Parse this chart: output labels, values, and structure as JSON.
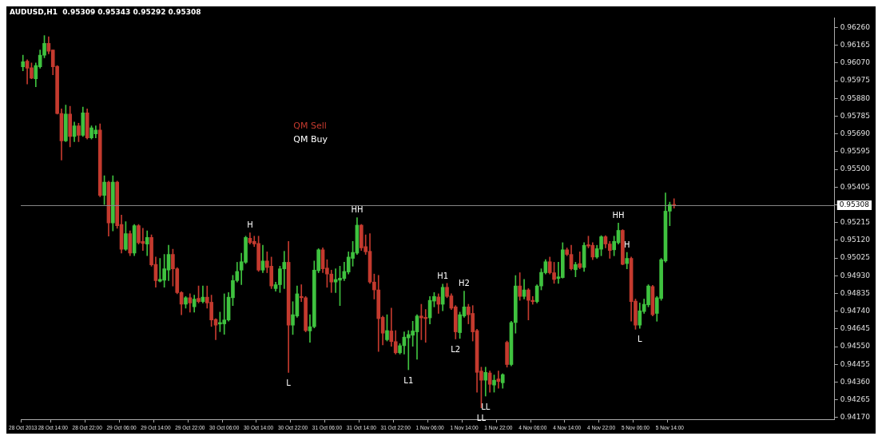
{
  "chart_data": {
    "type": "candlestick",
    "title": "AUDUSD,H1  0.95309 0.95343 0.95292 0.95308",
    "categories": [
      "28 Oct 2013",
      null,
      null,
      null,
      null,
      null,
      null,
      "28 Oct 14:00",
      null,
      null,
      null,
      null,
      null,
      null,
      null,
      "28 Oct 22:00",
      null,
      null,
      null,
      null,
      null,
      null,
      null,
      "29 Oct 06:00",
      null,
      null,
      null,
      null,
      null,
      null,
      null,
      "29 Oct 14:00",
      null,
      null,
      null,
      null,
      null,
      null,
      null,
      "29 Oct 22:00",
      null,
      null,
      null,
      null,
      null,
      null,
      null,
      "30 Oct 06:00",
      null,
      null,
      null,
      null,
      null,
      null,
      null,
      "30 Oct 14:00",
      null,
      null,
      null,
      null,
      null,
      null,
      null,
      "30 Oct 22:00",
      null,
      null,
      null,
      null,
      null,
      null,
      null,
      "31 Oct 06:00",
      null,
      null,
      null,
      null,
      null,
      null,
      null,
      "31 Oct 14:00",
      null,
      null,
      null,
      null,
      null,
      null,
      null,
      "31 Oct 22:00",
      null,
      null,
      null,
      null,
      null,
      null,
      null,
      "1 Nov 06:00",
      null,
      null,
      null,
      null,
      null,
      null,
      null,
      "1 Nov 14:00",
      null,
      null,
      null,
      null,
      null,
      null,
      null,
      "1 Nov 22:00",
      null,
      null,
      null,
      null,
      null,
      null,
      null,
      "4 Nov 06:00",
      null,
      null,
      null,
      null,
      null,
      null,
      null,
      "4 Nov 14:00",
      null,
      null,
      null,
      null,
      null,
      null,
      null,
      "4 Nov 22:00",
      null,
      null,
      null,
      null,
      null,
      null,
      null,
      "5 Nov 06:00",
      null,
      null,
      null,
      null,
      null,
      null,
      null,
      "5 Nov 14:00",
      null,
      null,
      null,
      null,
      null,
      null,
      null,
      null,
      null,
      null,
      null,
      null,
      null,
      null,
      null,
      null,
      null,
      null,
      null,
      null,
      null,
      null,
      null,
      null,
      null,
      null,
      null,
      null,
      null,
      null,
      null,
      null,
      null,
      null,
      null,
      null,
      null,
      null
    ],
    "ohlc": [
      [
        0.96049,
        0.96112,
        0.96028,
        0.96077
      ],
      [
        0.9608,
        0.96087,
        0.95957,
        0.96042
      ],
      [
        0.96045,
        0.9607,
        0.95985,
        0.95988
      ],
      [
        0.95985,
        0.9607,
        0.95943,
        0.96056
      ],
      [
        0.96049,
        0.9614,
        0.96042,
        0.96112
      ],
      [
        0.96112,
        0.96217,
        0.96098,
        0.96175
      ],
      [
        0.96175,
        0.9621,
        0.96119,
        0.96133
      ],
      [
        0.9614,
        0.9614,
        0.96007,
        0.96049
      ],
      [
        0.96052,
        0.96056,
        0.95796,
        0.95799
      ],
      [
        0.958,
        0.95824,
        0.9555,
        0.95653
      ],
      [
        0.95653,
        0.95845,
        0.95648,
        0.95796
      ],
      [
        0.95796,
        0.95838,
        0.9562,
        0.95676
      ],
      [
        0.95676,
        0.95754,
        0.95648,
        0.95733
      ],
      [
        0.95733,
        0.95747,
        0.95648,
        0.95683
      ],
      [
        0.95683,
        0.95834,
        0.95676,
        0.95803
      ],
      [
        0.95803,
        0.95824,
        0.95662,
        0.95669
      ],
      [
        0.95669,
        0.95733,
        0.95662,
        0.95723
      ],
      [
        0.9569,
        0.95733,
        0.95669,
        0.95711
      ],
      [
        0.95711,
        0.95744,
        0.95353,
        0.9536
      ],
      [
        0.9536,
        0.95466,
        0.95311,
        0.95431
      ],
      [
        0.95431,
        0.95437,
        0.95142,
        0.95213
      ],
      [
        0.95213,
        0.95466,
        0.9517,
        0.95431
      ],
      [
        0.95431,
        0.95437,
        0.95184,
        0.95198
      ],
      [
        0.95205,
        0.95255,
        0.95051,
        0.95072
      ],
      [
        0.95072,
        0.9522,
        0.95065,
        0.95156
      ],
      [
        0.95156,
        0.9517,
        0.95037,
        0.95051
      ],
      [
        0.95051,
        0.95205,
        0.95037,
        0.95198
      ],
      [
        0.95198,
        0.95205,
        0.951,
        0.95107
      ],
      [
        0.95114,
        0.95184,
        0.95065,
        0.95103
      ],
      [
        0.951,
        0.9517,
        0.95037,
        0.95135
      ],
      [
        0.95135,
        0.95149,
        0.94981,
        0.94988
      ],
      [
        0.94991,
        0.9503,
        0.94868,
        0.94904
      ],
      [
        0.94901,
        0.95023,
        0.94896,
        0.9491
      ],
      [
        0.94906,
        0.95044,
        0.94868,
        0.94967
      ],
      [
        0.9496,
        0.95093,
        0.94904,
        0.95044
      ],
      [
        0.95044,
        0.95072,
        0.94875,
        0.94967
      ],
      [
        0.94967,
        0.94974,
        0.94833,
        0.9484
      ],
      [
        0.9484,
        0.94845,
        0.94721,
        0.94777
      ],
      [
        0.94777,
        0.94819,
        0.94756,
        0.94812
      ],
      [
        0.94812,
        0.94833,
        0.94735,
        0.94784
      ],
      [
        0.94763,
        0.94826,
        0.94735,
        0.94805
      ],
      [
        0.94809,
        0.94875,
        0.94784,
        0.94791
      ],
      [
        0.94791,
        0.94875,
        0.94784,
        0.94815
      ],
      [
        0.94815,
        0.94875,
        0.94756,
        0.94784
      ],
      [
        0.94788,
        0.94826,
        0.94658,
        0.94693
      ],
      [
        0.94696,
        0.947,
        0.94587,
        0.94665
      ],
      [
        0.94671,
        0.94735,
        0.9463,
        0.94679
      ],
      [
        0.94672,
        0.94833,
        0.94616,
        0.94693
      ],
      [
        0.94693,
        0.9484,
        0.94686,
        0.94815
      ],
      [
        0.94812,
        0.94932,
        0.9477,
        0.94904
      ],
      [
        0.94904,
        0.95002,
        0.94896,
        0.94953
      ],
      [
        0.9496,
        0.95051,
        0.94882,
        0.95005
      ],
      [
        0.95002,
        0.95142,
        0.94995,
        0.95135
      ],
      [
        0.95131,
        0.9516,
        0.951,
        0.95107
      ],
      [
        0.95114,
        0.95142,
        0.95086,
        0.951
      ],
      [
        0.95103,
        0.95142,
        0.94953,
        0.9496
      ],
      [
        0.9496,
        0.95093,
        0.94946,
        0.95009
      ],
      [
        0.95009,
        0.95058,
        0.94946,
        0.94974
      ],
      [
        0.94981,
        0.9503,
        0.94861,
        0.94875
      ],
      [
        0.94861,
        0.94896,
        0.94847,
        0.94882
      ],
      [
        0.94882,
        0.94981,
        0.9484,
        0.94967
      ],
      [
        0.94967,
        0.95061,
        0.94861,
        0.95002
      ],
      [
        0.95002,
        0.95114,
        0.94412,
        0.94665
      ],
      [
        0.94665,
        0.94791,
        0.94615,
        0.94721
      ],
      [
        0.94714,
        0.94875,
        0.94707,
        0.94833
      ],
      [
        0.94819,
        0.94882,
        0.94791,
        0.94812
      ],
      [
        0.94812,
        0.94819,
        0.94629,
        0.94636
      ],
      [
        0.94634,
        0.94721,
        0.94573,
        0.94657
      ],
      [
        0.94657,
        0.95009,
        0.9465,
        0.9496
      ],
      [
        0.94957,
        0.95075,
        0.94946,
        0.95069
      ],
      [
        0.95069,
        0.95079,
        0.94946,
        0.94967
      ],
      [
        0.94971,
        0.95016,
        0.94868,
        0.94939
      ],
      [
        0.94939,
        0.9496,
        0.9484,
        0.94896
      ],
      [
        0.94896,
        0.94967,
        0.9484,
        0.9491
      ],
      [
        0.94906,
        0.94981,
        0.9477,
        0.94917
      ],
      [
        0.94915,
        0.95002,
        0.94904,
        0.94953
      ],
      [
        0.9495,
        0.95058,
        0.94939,
        0.9503
      ],
      [
        0.95023,
        0.95114,
        0.94981,
        0.95055
      ],
      [
        0.95051,
        0.95241,
        0.95044,
        0.95201
      ],
      [
        0.95201,
        0.95205,
        0.95065,
        0.95079
      ],
      [
        0.95086,
        0.95149,
        0.95044,
        0.95058
      ],
      [
        0.95061,
        0.95156,
        0.94889,
        0.94896
      ],
      [
        0.94896,
        0.94939,
        0.94805,
        0.94854
      ],
      [
        0.94854,
        0.94932,
        0.94524,
        0.947
      ],
      [
        0.94707,
        0.94714,
        0.94559,
        0.94622
      ],
      [
        0.94587,
        0.94721,
        0.9458,
        0.94636
      ],
      [
        0.94634,
        0.94756,
        0.94552,
        0.94577
      ],
      [
        0.94577,
        0.94636,
        0.9451,
        0.94517
      ],
      [
        0.94517,
        0.94566,
        0.9451,
        0.94555
      ],
      [
        0.94555,
        0.94629,
        0.9451,
        0.94601
      ],
      [
        0.94597,
        0.94636,
        0.94426,
        0.94615
      ],
      [
        0.94611,
        0.94686,
        0.94552,
        0.94634
      ],
      [
        0.94629,
        0.94721,
        0.94482,
        0.94714
      ],
      [
        0.94714,
        0.94777,
        0.94587,
        0.94704
      ],
      [
        0.94707,
        0.94749,
        0.94573,
        0.947
      ],
      [
        0.94704,
        0.94819,
        0.94672,
        0.94798
      ],
      [
        0.94794,
        0.9484,
        0.94763,
        0.94819
      ],
      [
        0.94816,
        0.94833,
        0.94728,
        0.94777
      ],
      [
        0.94777,
        0.94885,
        0.94742,
        0.94868
      ],
      [
        0.94868,
        0.94889,
        0.94812,
        0.94819
      ],
      [
        0.94822,
        0.94833,
        0.94749,
        0.94756
      ],
      [
        0.94763,
        0.9477,
        0.94591,
        0.94629
      ],
      [
        0.94625,
        0.94735,
        0.94594,
        0.94721
      ],
      [
        0.94714,
        0.94847,
        0.94707,
        0.94763
      ],
      [
        0.94763,
        0.94777,
        0.94672,
        0.94721
      ],
      [
        0.94728,
        0.9477,
        0.9458,
        0.94629
      ],
      [
        0.94636,
        0.94643,
        0.94306,
        0.94412
      ],
      [
        0.94419,
        0.9444,
        0.94222,
        0.9437
      ],
      [
        0.9437,
        0.9444,
        0.94285,
        0.94412
      ],
      [
        0.94409,
        0.94419,
        0.94306,
        0.94348
      ],
      [
        0.94344,
        0.94398,
        0.94306,
        0.9437
      ],
      [
        0.94377,
        0.94419,
        0.94327,
        0.94363
      ],
      [
        0.94356,
        0.94405,
        0.94327,
        0.944
      ],
      [
        0.94573,
        0.9458,
        0.9444,
        0.94454
      ],
      [
        0.94454,
        0.94686,
        0.94447,
        0.94679
      ],
      [
        0.94679,
        0.94931,
        0.94622,
        0.94875
      ],
      [
        0.94875,
        0.94946,
        0.94798,
        0.94819
      ],
      [
        0.94819,
        0.9491,
        0.94805,
        0.94854
      ],
      [
        0.94854,
        0.94861,
        0.94693,
        0.94798
      ],
      [
        0.94798,
        0.94819,
        0.94777,
        0.94791
      ],
      [
        0.94791,
        0.94882,
        0.94784,
        0.94875
      ],
      [
        0.94875,
        0.94967,
        0.94854,
        0.94948
      ],
      [
        0.94946,
        0.95016,
        0.94939,
        0.95005
      ],
      [
        0.95005,
        0.9503,
        0.94939,
        0.94946
      ],
      [
        0.94946,
        0.95002,
        0.94889,
        0.9491
      ],
      [
        0.94915,
        0.95002,
        0.94889,
        0.94924
      ],
      [
        0.9492,
        0.95107,
        0.94917,
        0.95069
      ],
      [
        0.95069,
        0.95079,
        0.95037,
        0.95044
      ],
      [
        0.95044,
        0.95093,
        0.9496,
        0.94967
      ],
      [
        0.94962,
        0.95002,
        0.94924,
        0.9499
      ],
      [
        0.94995,
        0.95058,
        0.94967,
        0.94974
      ],
      [
        0.94974,
        0.95107,
        0.94953,
        0.95093
      ],
      [
        0.95096,
        0.95142,
        0.95079,
        0.95089
      ],
      [
        0.95093,
        0.95107,
        0.95016,
        0.9503
      ],
      [
        0.9503,
        0.95093,
        0.95023,
        0.95075
      ],
      [
        0.95072,
        0.95145,
        0.95037,
        0.95139
      ],
      [
        0.95139,
        0.95145,
        0.95079,
        0.951
      ],
      [
        0.951,
        0.95114,
        0.95023,
        0.95065
      ],
      [
        0.95069,
        0.95142,
        0.95037,
        0.95114
      ],
      [
        0.95107,
        0.95212,
        0.951,
        0.95173
      ],
      [
        0.95173,
        0.95177,
        0.94988,
        0.94991
      ],
      [
        0.94995,
        0.95055,
        0.94967,
        0.95023
      ],
      [
        0.95023,
        0.9503,
        0.94686,
        0.94791
      ],
      [
        0.94794,
        0.94805,
        0.94643,
        0.94665
      ],
      [
        0.94665,
        0.94784,
        0.94648,
        0.94742
      ],
      [
        0.94738,
        0.94805,
        0.94728,
        0.94777
      ],
      [
        0.94774,
        0.94882,
        0.94763,
        0.94875
      ],
      [
        0.94872,
        0.94878,
        0.94714,
        0.94721
      ],
      [
        0.94728,
        0.94819,
        0.94686,
        0.94812
      ],
      [
        0.94808,
        0.95023,
        0.94798,
        0.95016
      ],
      [
        0.95009,
        0.95374,
        0.95002,
        0.95276
      ],
      [
        0.95276,
        0.95325,
        0.95198,
        0.95311
      ],
      [
        0.95309,
        0.95343,
        0.95292,
        0.95308
      ],
      null,
      null,
      null,
      null,
      null,
      null,
      null,
      null,
      null,
      null,
      null,
      null,
      null,
      null,
      null,
      null,
      null,
      null,
      null,
      null,
      null,
      null,
      null,
      null,
      null,
      null,
      null,
      null,
      null,
      null,
      null,
      null,
      null,
      null,
      null,
      null,
      null
    ],
    "ylim": [
      0.9416,
      0.9631
    ],
    "yticks": [
      {
        "value": 0.9417,
        "label": "0.94170"
      },
      {
        "value": 0.94265,
        "label": "0.94265"
      },
      {
        "value": 0.9436,
        "label": "0.94360"
      },
      {
        "value": 0.94455,
        "label": "0.94455"
      },
      {
        "value": 0.9455,
        "label": "0.94550"
      },
      {
        "value": 0.94645,
        "label": "0.94645"
      },
      {
        "value": 0.9474,
        "label": "0.94740"
      },
      {
        "value": 0.94835,
        "label": "0.94835"
      },
      {
        "value": 0.9493,
        "label": "0.94930"
      },
      {
        "value": 0.95025,
        "label": "0.95025"
      },
      {
        "value": 0.9512,
        "label": "0.95120"
      },
      {
        "value": 0.95215,
        "label": "0.95215"
      },
      {
        "value": 0.9531,
        "label": null
      },
      {
        "value": 0.95405,
        "label": "0.95405"
      },
      {
        "value": 0.955,
        "label": "0.95500"
      },
      {
        "value": 0.95595,
        "label": "0.95595"
      },
      {
        "value": 0.9569,
        "label": "0.95690"
      },
      {
        "value": 0.95785,
        "label": "0.95785"
      },
      {
        "value": 0.9588,
        "label": "0.95880"
      },
      {
        "value": 0.95975,
        "label": "0.95975"
      },
      {
        "value": 0.9607,
        "label": "0.96070"
      },
      {
        "value": 0.96165,
        "label": "0.96165"
      },
      {
        "value": 0.9626,
        "label": "0.96260"
      }
    ],
    "ref_lines": [
      {
        "axis": "y",
        "value": 0.95308,
        "label": "0.95308",
        "color": "#8c8c8c"
      }
    ],
    "annotations": [
      "QM Sell",
      "QM Buy",
      {
        "text": "H",
        "y": 0.9516
      },
      {
        "text": "L",
        "y": 0.94412
      },
      {
        "text": "HH",
        "y": 0.95241
      },
      {
        "text": "L1",
        "y": 0.94426
      },
      {
        "text": "H1",
        "y": 0.94885
      },
      {
        "text": "L2",
        "y": 0.94591
      },
      {
        "text": "H2",
        "y": 0.94847
      },
      {
        "text": "LL",
        "y": 0.94222
      },
      {
        "text": "LL",
        "y": 0.94285
      },
      {
        "text": "HH",
        "y": 0.95212
      },
      {
        "text": "H",
        "y": 0.95055
      },
      {
        "text": "L",
        "y": 0.94648
      }
    ],
    "grid": false,
    "legend": false
  }
}
